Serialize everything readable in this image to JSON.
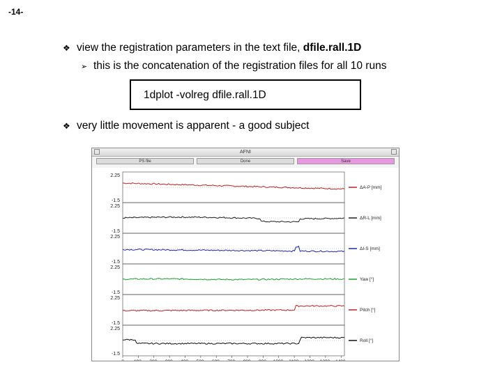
{
  "slide_number": "-14-",
  "bullets": [
    {
      "marker": "❖",
      "text": "view the registration parameters in the text file, ",
      "bold": "dfile.rall.1D"
    },
    {
      "marker": "➢",
      "text": "this is the concatenation of the registration files for all 10 runs"
    },
    {
      "marker": "❖",
      "text": "very little movement is apparent - a good subject"
    }
  ],
  "command": "1dplot -volreg dfile.rall.1D",
  "window": {
    "title": "AFNI",
    "buttons": [
      "PS file",
      "Done",
      "Save"
    ],
    "active_button_color": "#e898e0"
  },
  "chart_data": {
    "type": "line",
    "x_ticks": [
      "0",
      "100.",
      "200.",
      "300.",
      "400.",
      "500.",
      "600.",
      "700.",
      "800.",
      "900.",
      "1000.",
      "1100.",
      "1200.",
      "1300.",
      "1400."
    ],
    "panels": [
      {
        "label": "ΔA-P [mm]",
        "color": "#c02020",
        "ticks": [
          "2.25",
          "-1.5"
        ]
      },
      {
        "label": "ΔR-L [mm]",
        "color": "#202020",
        "ticks": [
          "2.25",
          "-1.5"
        ]
      },
      {
        "label": "ΔI-S [mm]",
        "color": "#1c2aa8",
        "ticks": [
          "2.25",
          "-1.5"
        ]
      },
      {
        "label": "Yaw [°]",
        "color": "#20a030",
        "ticks": [
          "2.25",
          "-1.5"
        ]
      },
      {
        "label": "Pitch [°]",
        "color": "#c02020",
        "ticks": [
          "2.25",
          "-1.5"
        ]
      },
      {
        "label": "Roll [°]",
        "color": "#101010",
        "ticks": [
          "2.25",
          "-1.5"
        ]
      }
    ]
  }
}
